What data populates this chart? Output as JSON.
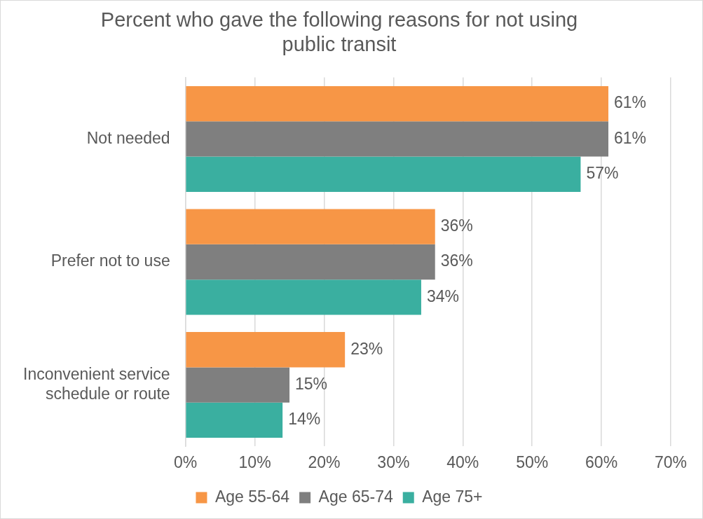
{
  "chart_data": {
    "type": "bar",
    "orientation": "horizontal",
    "title": "Percent who gave the following reasons for not using public transit",
    "categories": [
      "Not needed",
      "Prefer not to use",
      "Inconvenient service schedule or route"
    ],
    "series": [
      {
        "name": "Age 55-64",
        "color": "#f79646",
        "values": [
          61,
          36,
          23
        ],
        "value_labels": [
          "61%",
          "36%",
          "23%"
        ]
      },
      {
        "name": "Age 65-74",
        "color": "#7f7f7f",
        "values": [
          61,
          36,
          15
        ],
        "value_labels": [
          "61%",
          "36%",
          "15%"
        ]
      },
      {
        "name": "Age 75+",
        "color": "#3aafa0",
        "values": [
          57,
          34,
          14
        ],
        "value_labels": [
          "57%",
          "34%",
          "14%"
        ]
      }
    ],
    "xlim": [
      0,
      70
    ],
    "xticks": [
      {
        "value": 0,
        "label": "0%"
      },
      {
        "value": 10,
        "label": "10%"
      },
      {
        "value": 20,
        "label": "20%"
      },
      {
        "value": 30,
        "label": "30%"
      },
      {
        "value": 40,
        "label": "40%"
      },
      {
        "value": 50,
        "label": "50%"
      },
      {
        "value": 60,
        "label": "60%"
      },
      {
        "value": 70,
        "label": "70%"
      }
    ],
    "grid": "x",
    "legend": "bottom"
  }
}
